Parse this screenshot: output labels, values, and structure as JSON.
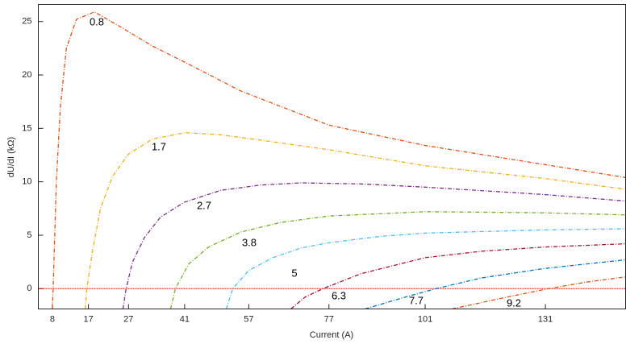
{
  "chart_data": {
    "type": "line",
    "x_label": "Current (A)",
    "y_label": "dU/dI (kΩ)",
    "xlim": [
      4.5,
      151
    ],
    "ylim": [
      -1.9,
      26.6
    ],
    "xticks": [
      8,
      17,
      27,
      41,
      57,
      77,
      101,
      131
    ],
    "yticks": [
      0,
      5,
      10,
      15,
      20,
      25
    ],
    "reference_line": {
      "value": 0,
      "color": "#ff0000"
    },
    "series": [
      {
        "name": "0.8",
        "color": "#d95319",
        "x": [
          8,
          8.2,
          9,
          10,
          11.5,
          14,
          18.5,
          25,
          33,
          41,
          55,
          77,
          101,
          131,
          151
        ],
        "values": [
          -1.9,
          0,
          10,
          17,
          22.5,
          25.2,
          25.9,
          24.5,
          22.7,
          21.2,
          18.5,
          15.3,
          13.4,
          11.6,
          10.4
        ]
      },
      {
        "name": "1.7",
        "color": "#edb120",
        "x": [
          16.2,
          16.6,
          18,
          20,
          23,
          27,
          33,
          41,
          50,
          60,
          77,
          101,
          131,
          151
        ],
        "values": [
          -1.9,
          0,
          3.5,
          7.5,
          10.5,
          12.6,
          14,
          14.6,
          14.4,
          13.9,
          13,
          11.5,
          10.3,
          9.3
        ]
      },
      {
        "name": "2.7",
        "color": "#7e2f8e",
        "x": [
          25.6,
          26.4,
          28,
          31,
          35,
          41,
          50,
          60,
          70,
          85,
          101,
          131,
          151
        ],
        "values": [
          -1.9,
          0,
          2.5,
          4.8,
          6.7,
          8.1,
          9.2,
          9.7,
          9.9,
          9.8,
          9.5,
          8.8,
          8.2
        ]
      },
      {
        "name": "3.8",
        "color": "#77ac30",
        "x": [
          37.5,
          38.7,
          42,
          47,
          55,
          65,
          77,
          101,
          131,
          151
        ],
        "values": [
          -1.9,
          0,
          2.3,
          3.9,
          5.3,
          6.2,
          6.8,
          7.2,
          7.1,
          6.9
        ]
      },
      {
        "name": "5",
        "color": "#4dbeee",
        "x": [
          51.4,
          53,
          57,
          63,
          70,
          77,
          90,
          101,
          131,
          151
        ],
        "values": [
          -1.9,
          0,
          1.7,
          2.9,
          3.8,
          4.3,
          4.9,
          5.2,
          5.5,
          5.6
        ]
      },
      {
        "name": "6.3",
        "color": "#a2142f",
        "x": [
          67.5,
          71,
          75.5,
          85,
          101,
          115,
          131,
          151
        ],
        "values": [
          -1.9,
          -0.8,
          0,
          1.4,
          2.9,
          3.5,
          3.9,
          4.2
        ]
      },
      {
        "name": "7.7",
        "color": "#0072bd",
        "x": [
          86,
          95,
          103.7,
          115,
          131,
          151
        ],
        "values": [
          -1.9,
          -0.9,
          0,
          1,
          1.9,
          2.7
        ]
      },
      {
        "name": "9.2",
        "color": "#d95319",
        "x": [
          107.7,
          120,
          131.8,
          141,
          151
        ],
        "values": [
          -1.9,
          -0.9,
          0,
          0.6,
          1.1
        ]
      }
    ]
  }
}
